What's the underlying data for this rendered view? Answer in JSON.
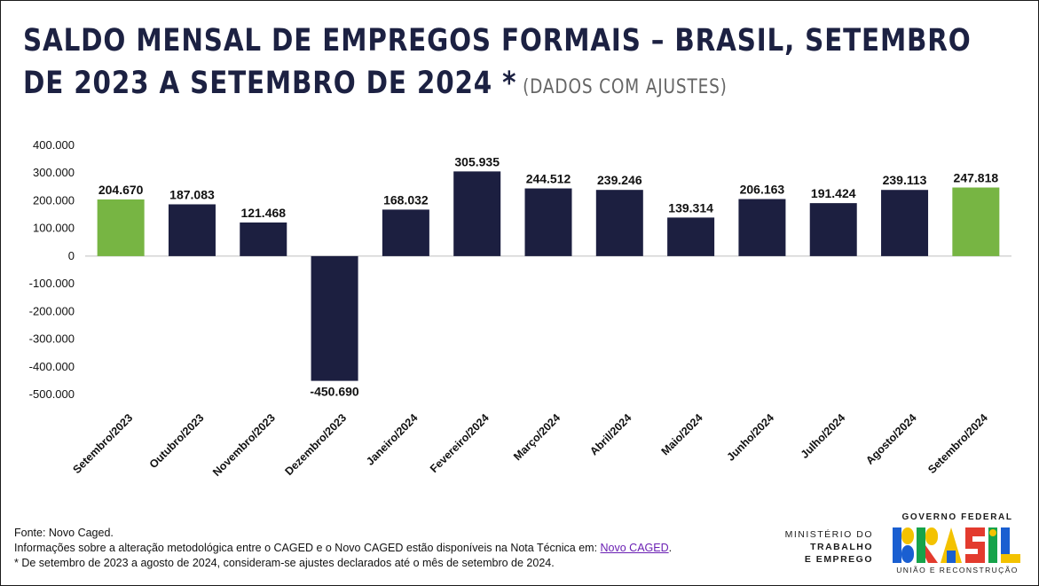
{
  "title": {
    "line1": "SALDO MENSAL DE EMPREGOS FORMAIS – BRASIL, SETEMBRO",
    "line2": "DE 2023 A SETEMBRO DE 2024",
    "star": "*",
    "note": "(DADOS COM AJUSTES)"
  },
  "chart_data": {
    "type": "bar",
    "categories": [
      "Setembro/2023",
      "Outubro/2023",
      "Novembro/2023",
      "Dezembro/2023",
      "Janeiro/2024",
      "Fevereiro/2024",
      "Março/2024",
      "Abril/2024",
      "Maio/2024",
      "Junho/2024",
      "Julho/2024",
      "Agosto/2024",
      "Setembro/2024"
    ],
    "values": [
      204670,
      187083,
      121468,
      -450690,
      168032,
      305935,
      244512,
      239246,
      139314,
      206163,
      191424,
      239113,
      247818
    ],
    "value_labels": [
      "204.670",
      "187.083",
      "121.468",
      "-450.690",
      "168.032",
      "305.935",
      "244.512",
      "239.246",
      "139.314",
      "206.163",
      "191.424",
      "239.113",
      "247.818"
    ],
    "highlighted": [
      true,
      false,
      false,
      false,
      false,
      false,
      false,
      false,
      false,
      false,
      false,
      false,
      true
    ],
    "ylim": [
      -500000,
      400000
    ],
    "yticks": [
      400000,
      300000,
      200000,
      100000,
      0,
      -100000,
      -200000,
      -300000,
      -400000,
      -500000
    ],
    "ytick_labels": [
      "400.000",
      "300.000",
      "200.000",
      "100.000",
      "0",
      "-100.000",
      "-200.000",
      "-300.000",
      "-400.000",
      "-500.000"
    ],
    "grid": false,
    "colors": {
      "default": "#1c1f40",
      "highlight": "#77b543"
    }
  },
  "footer": {
    "source": "Fonte: Novo Caged.",
    "info_prefix": "Informações sobre a alteração metodológica entre o CAGED e o Novo CAGED estão disponíveis na Nota Técnica em: ",
    "info_link": "Novo CAGED",
    "info_suffix": ".",
    "note": "* De setembro de 2023 a agosto de 2024, consideram-se ajustes declarados até o mês de setembro de 2024."
  },
  "ministry": {
    "line1": "MINISTÉRIO DO",
    "line2": "TRABALHO",
    "line3": "E EMPREGO"
  },
  "government": {
    "title": "GOVERNO FEDERAL",
    "wordmark": "BRASIL",
    "subtitle": "UNIÃO E RECONSTRUÇÃO"
  }
}
